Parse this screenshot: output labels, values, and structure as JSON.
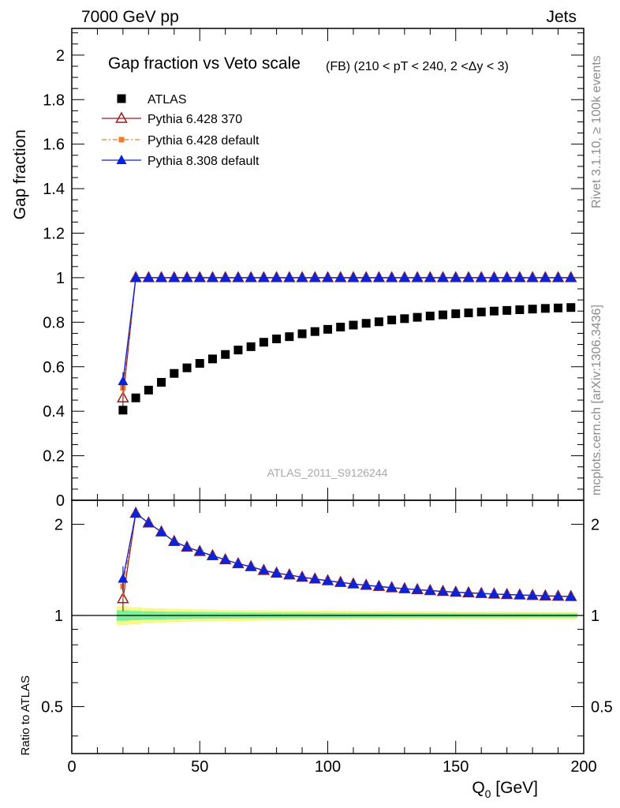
{
  "header": {
    "left": "7000 GeV pp",
    "right": "Jets"
  },
  "side_labels": {
    "rivet": "Rivet 3.1.10, ≥ 100k events",
    "mcplots": "mcplots.cern.ch [arXiv:1306.3436]"
  },
  "chart_data": {
    "type": "scatter",
    "title": "Gap fraction vs Veto scale",
    "subtitle": "(FB) (210 < pT < 240, 2 <Δy < 3)",
    "watermark": "ATLAS_2011_S9126244",
    "xlabel_main": "Q",
    "xlabel_sub": "0",
    "xlabel_unit": " [GeV]",
    "ylabel": "Gap fraction",
    "ratio_ylabel": "Ratio to ATLAS",
    "xlim": [
      0,
      200
    ],
    "ylim": [
      0,
      2.12
    ],
    "ratio_ylim": [
      0.35,
      2.4
    ],
    "ratio_scale": "log",
    "xticks": [
      0,
      50,
      100,
      150,
      200
    ],
    "yticks": [
      "0",
      "0.2",
      "0.4",
      "0.6",
      "0.8",
      "1",
      "1.2",
      "1.4",
      "1.6",
      "1.8",
      "2"
    ],
    "ratio_yticks": [
      "0.5",
      "1",
      "2"
    ],
    "legend_position": "top-left",
    "x": [
      20,
      25,
      30,
      35,
      40,
      45,
      50,
      55,
      60,
      65,
      70,
      75,
      80,
      85,
      90,
      95,
      100,
      105,
      110,
      115,
      120,
      125,
      130,
      135,
      140,
      145,
      150,
      155,
      160,
      165,
      170,
      175,
      180,
      185,
      190,
      195
    ],
    "series": [
      {
        "name": "ATLAS",
        "color": "#000000",
        "marker": "square",
        "values": [
          0.405,
          0.46,
          0.495,
          0.53,
          0.57,
          0.595,
          0.615,
          0.635,
          0.655,
          0.675,
          0.69,
          0.71,
          0.725,
          0.735,
          0.748,
          0.758,
          0.768,
          0.778,
          0.787,
          0.795,
          0.802,
          0.81,
          0.816,
          0.822,
          0.828,
          0.833,
          0.838,
          0.842,
          0.846,
          0.85,
          0.853,
          0.856,
          0.859,
          0.862,
          0.864,
          0.866
        ]
      },
      {
        "name": "Pythia 6.428 370",
        "color": "#9b1c1c",
        "marker": "open-triangle",
        "values": [
          0.46,
          1,
          1,
          1,
          1,
          1,
          1,
          1,
          1,
          1,
          1,
          1,
          1,
          1,
          1,
          1,
          1,
          1,
          1,
          1,
          1,
          1,
          1,
          1,
          1,
          1,
          1,
          1,
          1,
          1,
          1,
          1,
          1,
          1,
          1,
          1
        ]
      },
      {
        "name": "Pythia 6.428 default",
        "color": "#f07c28",
        "marker": "small-square",
        "values": [
          0.505,
          1,
          1,
          1,
          1,
          1,
          1,
          1,
          1,
          1,
          1,
          1,
          1,
          1,
          1,
          1,
          1,
          1,
          1,
          1,
          1,
          1,
          1,
          1,
          1,
          1,
          1,
          1,
          1,
          1,
          1,
          1,
          1,
          1,
          1,
          1
        ]
      },
      {
        "name": "Pythia 8.308 default",
        "color": "#0a22d8",
        "marker": "triangle",
        "values": [
          0.535,
          1,
          1,
          1,
          1,
          1,
          1,
          1,
          1,
          1,
          1,
          1,
          1,
          1,
          1,
          1,
          1,
          1,
          1,
          1,
          1,
          1,
          1,
          1,
          1,
          1,
          1,
          1,
          1,
          1,
          1,
          1,
          1,
          1,
          1,
          1
        ]
      }
    ],
    "uncertainty_band_colors": {
      "inner": "#7cf098",
      "outer": "#f6f88a"
    }
  }
}
